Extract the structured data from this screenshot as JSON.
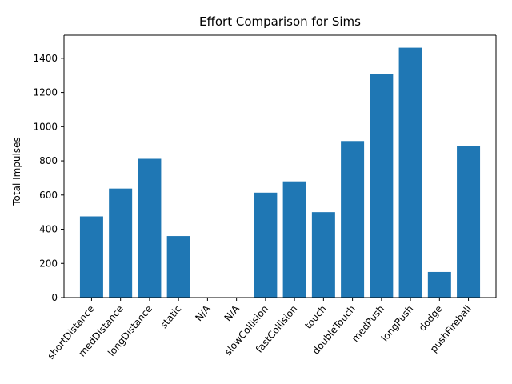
{
  "chart_data": {
    "type": "bar",
    "title": "Effort Comparison for Sims",
    "xlabel": "",
    "ylabel": "Total Impulses",
    "categories": [
      "shortDistance",
      "medDistance",
      "longDistance",
      "static",
      "N/A",
      "N/A",
      "slowCollision",
      "fastCollision",
      "touch",
      "doubleTouch",
      "medPush",
      "longPush",
      "dodge",
      "pushFireball"
    ],
    "values": [
      475,
      638,
      812,
      360,
      0,
      0,
      614,
      680,
      500,
      916,
      1310,
      1462,
      150,
      889
    ],
    "ylim": [
      0,
      1535
    ],
    "yticks": [
      0,
      200,
      400,
      600,
      800,
      1000,
      1200,
      1400
    ],
    "bar_color": "#1f77b4",
    "grid": false,
    "legend": "none"
  }
}
